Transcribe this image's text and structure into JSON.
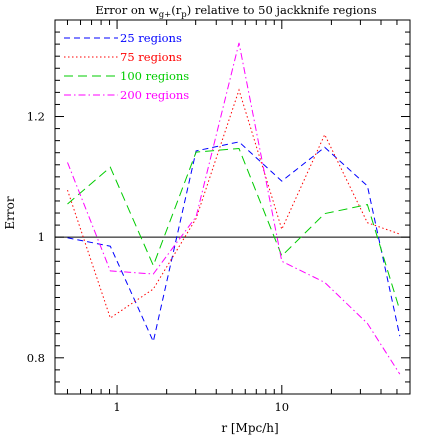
{
  "chart_data": {
    "type": "line",
    "title_prefix": "Error on w",
    "title_sub": "g+",
    "title_mid": "(r",
    "title_sub2": "p",
    "title_suffix": ") relative to 50 jackknife regions",
    "xlabel": "r [Mpc/h]",
    "ylabel": "Error",
    "xscale": "log",
    "xlim": [
      0.42,
      60
    ],
    "ylim": [
      0.74,
      1.36
    ],
    "x_ticklabels": [
      {
        "value": 1,
        "label": "1"
      },
      {
        "value": 10,
        "label": "10"
      }
    ],
    "y_ticklabels": [
      {
        "value": 0.8,
        "label": "0.8"
      },
      {
        "value": 1.0,
        "label": "1"
      },
      {
        "value": 1.2,
        "label": "1.2"
      }
    ],
    "reference_line": 1.0,
    "x": [
      0.5,
      0.91,
      1.66,
      3.02,
      5.5,
      10.0,
      18.2,
      33.1,
      52.0
    ],
    "series": [
      {
        "name": "25 regions",
        "color": "#0000ff",
        "dash": "6,4",
        "values": [
          0.999,
          0.985,
          0.827,
          1.143,
          1.158,
          1.093,
          1.149,
          1.085,
          0.836
        ]
      },
      {
        "name": "75 regions",
        "color": "#ff0000",
        "dash": "1.5,2.5",
        "values": [
          1.078,
          0.866,
          0.914,
          1.031,
          1.244,
          1.013,
          1.17,
          1.024,
          1.005
        ]
      },
      {
        "name": "100 regions",
        "color": "#00cc00",
        "dash": "9,5",
        "values": [
          1.055,
          1.116,
          0.953,
          1.141,
          1.147,
          0.969,
          1.039,
          1.054,
          0.879
        ]
      },
      {
        "name": "200 regions",
        "color": "#ff00ff",
        "dash": "7,3,1.5,3",
        "values": [
          1.124,
          0.944,
          0.939,
          1.034,
          1.322,
          0.96,
          0.925,
          0.857,
          0.773
        ]
      }
    ]
  }
}
